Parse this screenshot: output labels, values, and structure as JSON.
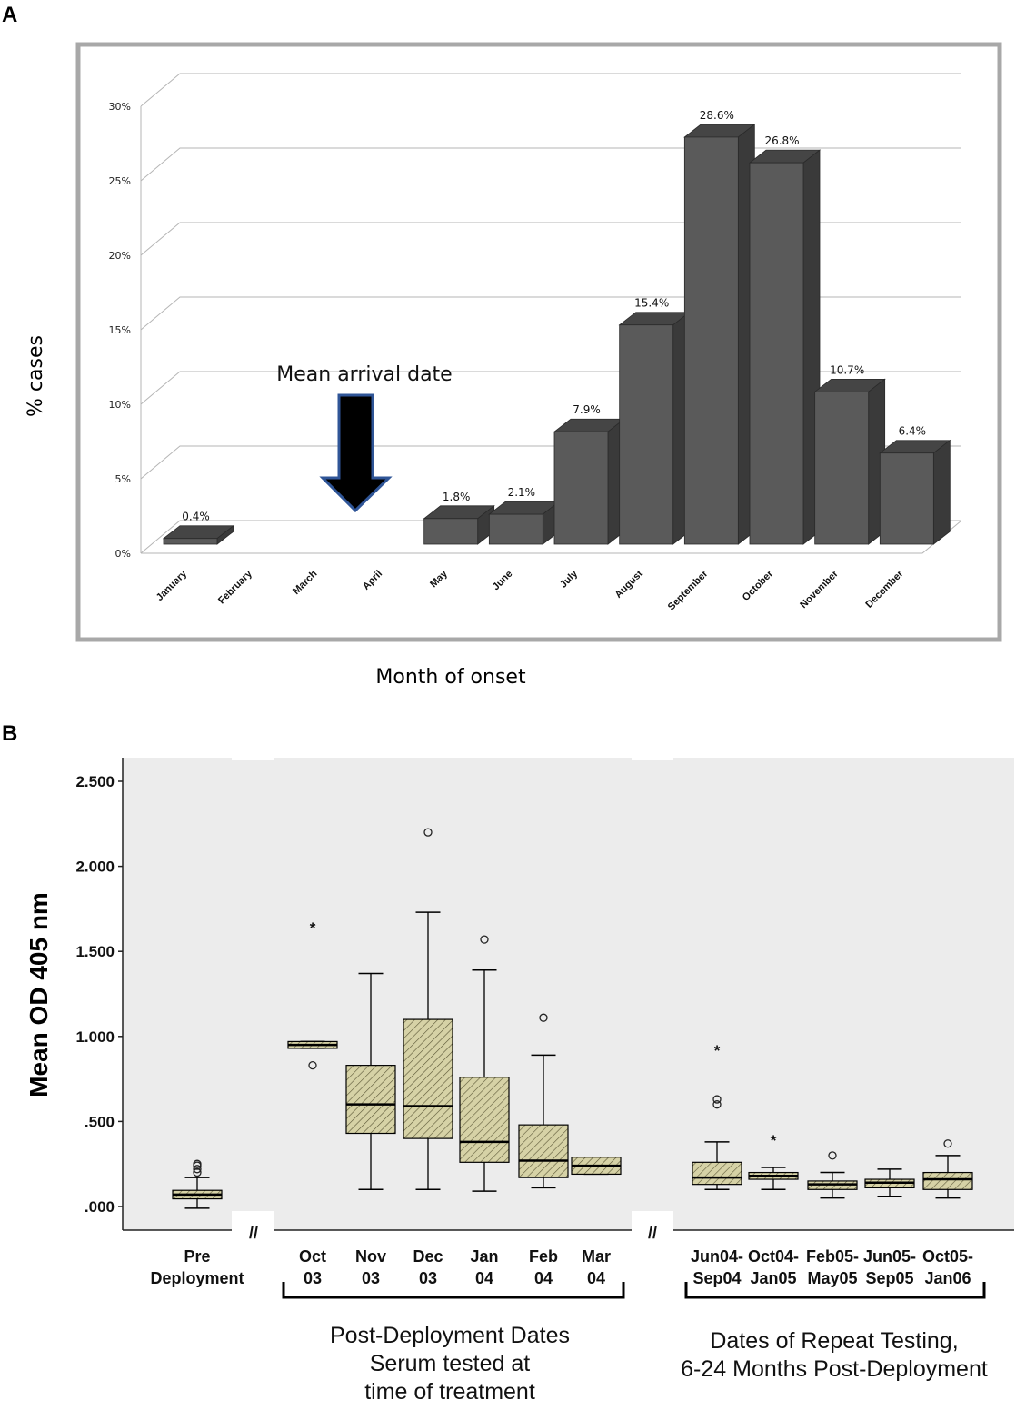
{
  "panels": {
    "a_letter": "A",
    "b_letter": "B"
  },
  "colors": {
    "bar_front": "#5a5a5a",
    "bar_top": "#454545",
    "bar_side": "#3a3a3a",
    "frame": "#a8a8a8",
    "plot_bg_b": "#ececec",
    "box_fill": "#d6d2a6",
    "arrow_fill": "#000000",
    "arrow_stroke": "#2f5597"
  },
  "chart_data": [
    {
      "type": "bar",
      "title": "",
      "xlabel": "Month of onset",
      "ylabel": "% cases",
      "ylim": [
        0,
        30
      ],
      "yticks": [
        "0%",
        "5%",
        "10%",
        "15%",
        "20%",
        "25%",
        "30%"
      ],
      "categories": [
        "January",
        "February",
        "March",
        "April",
        "May",
        "June",
        "July",
        "August",
        "September",
        "October",
        "November",
        "December"
      ],
      "values": [
        0.4,
        null,
        null,
        null,
        1.8,
        2.1,
        7.9,
        15.4,
        28.6,
        26.8,
        10.7,
        6.4
      ],
      "data_labels": [
        "0.4%",
        "",
        "",
        "",
        "1.8%",
        "2.1%",
        "7.9%",
        "15.4%",
        "28.6%",
        "26.8%",
        "10.7%",
        "6.4%"
      ],
      "annotation": {
        "text": "Mean arrival date",
        "month": "April",
        "marker": "down-arrow"
      },
      "grid": true,
      "style": "3d"
    },
    {
      "type": "box",
      "title": "",
      "xlabel": "",
      "ylabel": "Mean OD 405 nm",
      "ylim": [
        0,
        2.6
      ],
      "yticks": [
        ".000",
        ".500",
        "1.000",
        "1.500",
        "2.000",
        "2.500"
      ],
      "axis_break_label": "//",
      "groups": [
        {
          "key": "pre",
          "label_lines": [
            "Pre",
            "Deployment"
          ],
          "min": -0.01,
          "q1": 0.045,
          "median": 0.07,
          "q3": 0.095,
          "max": 0.17,
          "outliers": [
            0.2,
            0.22,
            0.24,
            0.25
          ],
          "extremes": []
        },
        {
          "key": "oct03",
          "label_lines": [
            "Oct",
            "03"
          ],
          "min": 0.93,
          "q1": 0.93,
          "median": 0.95,
          "q3": 0.97,
          "max": 0.97,
          "outliers": [
            0.83
          ],
          "extremes": [
            1.65
          ]
        },
        {
          "key": "nov03",
          "label_lines": [
            "Nov",
            "03"
          ],
          "min": 0.1,
          "q1": 0.43,
          "median": 0.6,
          "q3": 0.83,
          "max": 1.37,
          "outliers": [],
          "extremes": []
        },
        {
          "key": "dec03",
          "label_lines": [
            "Dec",
            "03"
          ],
          "min": 0.1,
          "q1": 0.4,
          "median": 0.59,
          "q3": 1.1,
          "max": 1.73,
          "outliers": [
            2.2
          ],
          "extremes": []
        },
        {
          "key": "jan04",
          "label_lines": [
            "Jan",
            "04"
          ],
          "min": 0.09,
          "q1": 0.26,
          "median": 0.38,
          "q3": 0.76,
          "max": 1.39,
          "outliers": [
            1.57
          ],
          "extremes": []
        },
        {
          "key": "feb04",
          "label_lines": [
            "Feb",
            "04"
          ],
          "min": 0.11,
          "q1": 0.17,
          "median": 0.27,
          "q3": 0.48,
          "max": 0.89,
          "outliers": [
            1.11
          ],
          "extremes": []
        },
        {
          "key": "mar04",
          "label_lines": [
            "Mar",
            "04"
          ],
          "min": 0.19,
          "q1": 0.19,
          "median": 0.24,
          "q3": 0.29,
          "max": 0.29,
          "outliers": [],
          "extremes": []
        },
        {
          "key": "jun04sep04",
          "label_lines": [
            "Jun04-",
            "Sep04"
          ],
          "min": 0.1,
          "q1": 0.13,
          "median": 0.17,
          "q3": 0.26,
          "max": 0.38,
          "outliers": [
            0.6,
            0.63
          ],
          "extremes": [
            0.93
          ]
        },
        {
          "key": "oct04jan05",
          "label_lines": [
            "Oct04-",
            "Jan05"
          ],
          "min": 0.1,
          "q1": 0.16,
          "median": 0.18,
          "q3": 0.2,
          "max": 0.23,
          "outliers": [],
          "extremes": [
            0.4
          ]
        },
        {
          "key": "feb05may05",
          "label_lines": [
            "Feb05-",
            "May05"
          ],
          "min": 0.05,
          "q1": 0.1,
          "median": 0.13,
          "q3": 0.15,
          "max": 0.2,
          "outliers": [
            0.3
          ],
          "extremes": []
        },
        {
          "key": "jun05sep05",
          "label_lines": [
            "Jun05-",
            "Sep05"
          ],
          "min": 0.06,
          "q1": 0.11,
          "median": 0.14,
          "q3": 0.16,
          "max": 0.22,
          "outliers": [],
          "extremes": []
        },
        {
          "key": "oct05jan06",
          "label_lines": [
            "Oct05-",
            "Jan06"
          ],
          "min": 0.05,
          "q1": 0.1,
          "median": 0.16,
          "q3": 0.2,
          "max": 0.3,
          "outliers": [
            0.37
          ],
          "extremes": []
        }
      ],
      "bracket_labels": [
        {
          "lines": [
            "Post-Deployment Dates",
            "Serum tested  at",
            "time of treatment"
          ]
        },
        {
          "lines": [
            "Dates of Repeat Testing,",
            "6-24 Months Post-Deployment"
          ]
        }
      ]
    }
  ]
}
